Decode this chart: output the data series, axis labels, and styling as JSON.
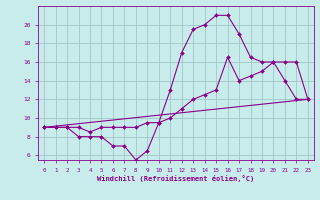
{
  "xlabel": "Windchill (Refroidissement éolien,°C)",
  "bg_color": "#c8ecec",
  "grid_color": "#a0c8c8",
  "line_color": "#8b008b",
  "xlim": [
    -0.5,
    23.5
  ],
  "ylim": [
    5.5,
    22.0
  ],
  "xticks": [
    0,
    1,
    2,
    3,
    4,
    5,
    6,
    7,
    8,
    9,
    10,
    11,
    12,
    13,
    14,
    15,
    16,
    17,
    18,
    19,
    20,
    21,
    22,
    23
  ],
  "yticks": [
    6,
    8,
    10,
    12,
    14,
    16,
    18,
    20
  ],
  "series1_x": [
    0,
    1,
    2,
    3,
    4,
    5,
    6,
    7,
    8,
    9,
    10,
    11,
    12,
    13,
    14,
    15,
    16,
    17,
    18,
    19,
    20,
    21,
    22,
    23
  ],
  "series1_y": [
    9.0,
    9.0,
    9.0,
    8.0,
    8.0,
    8.0,
    7.0,
    7.0,
    5.5,
    6.5,
    9.5,
    13.0,
    17.0,
    19.5,
    20.0,
    21.0,
    21.0,
    19.0,
    16.5,
    16.0,
    16.0,
    14.0,
    12.0,
    12.0
  ],
  "series2_x": [
    0,
    1,
    2,
    3,
    4,
    5,
    6,
    7,
    8,
    9,
    10,
    11,
    12,
    13,
    14,
    15,
    16,
    17,
    18,
    19,
    20,
    21,
    22,
    23
  ],
  "series2_y": [
    9.0,
    9.0,
    9.0,
    9.0,
    8.5,
    9.0,
    9.0,
    9.0,
    9.0,
    9.5,
    9.5,
    10.0,
    11.0,
    12.0,
    12.5,
    13.0,
    16.5,
    14.0,
    14.5,
    15.0,
    16.0,
    16.0,
    16.0,
    12.0
  ],
  "series3_x": [
    0,
    23
  ],
  "series3_y": [
    9.0,
    12.0
  ]
}
